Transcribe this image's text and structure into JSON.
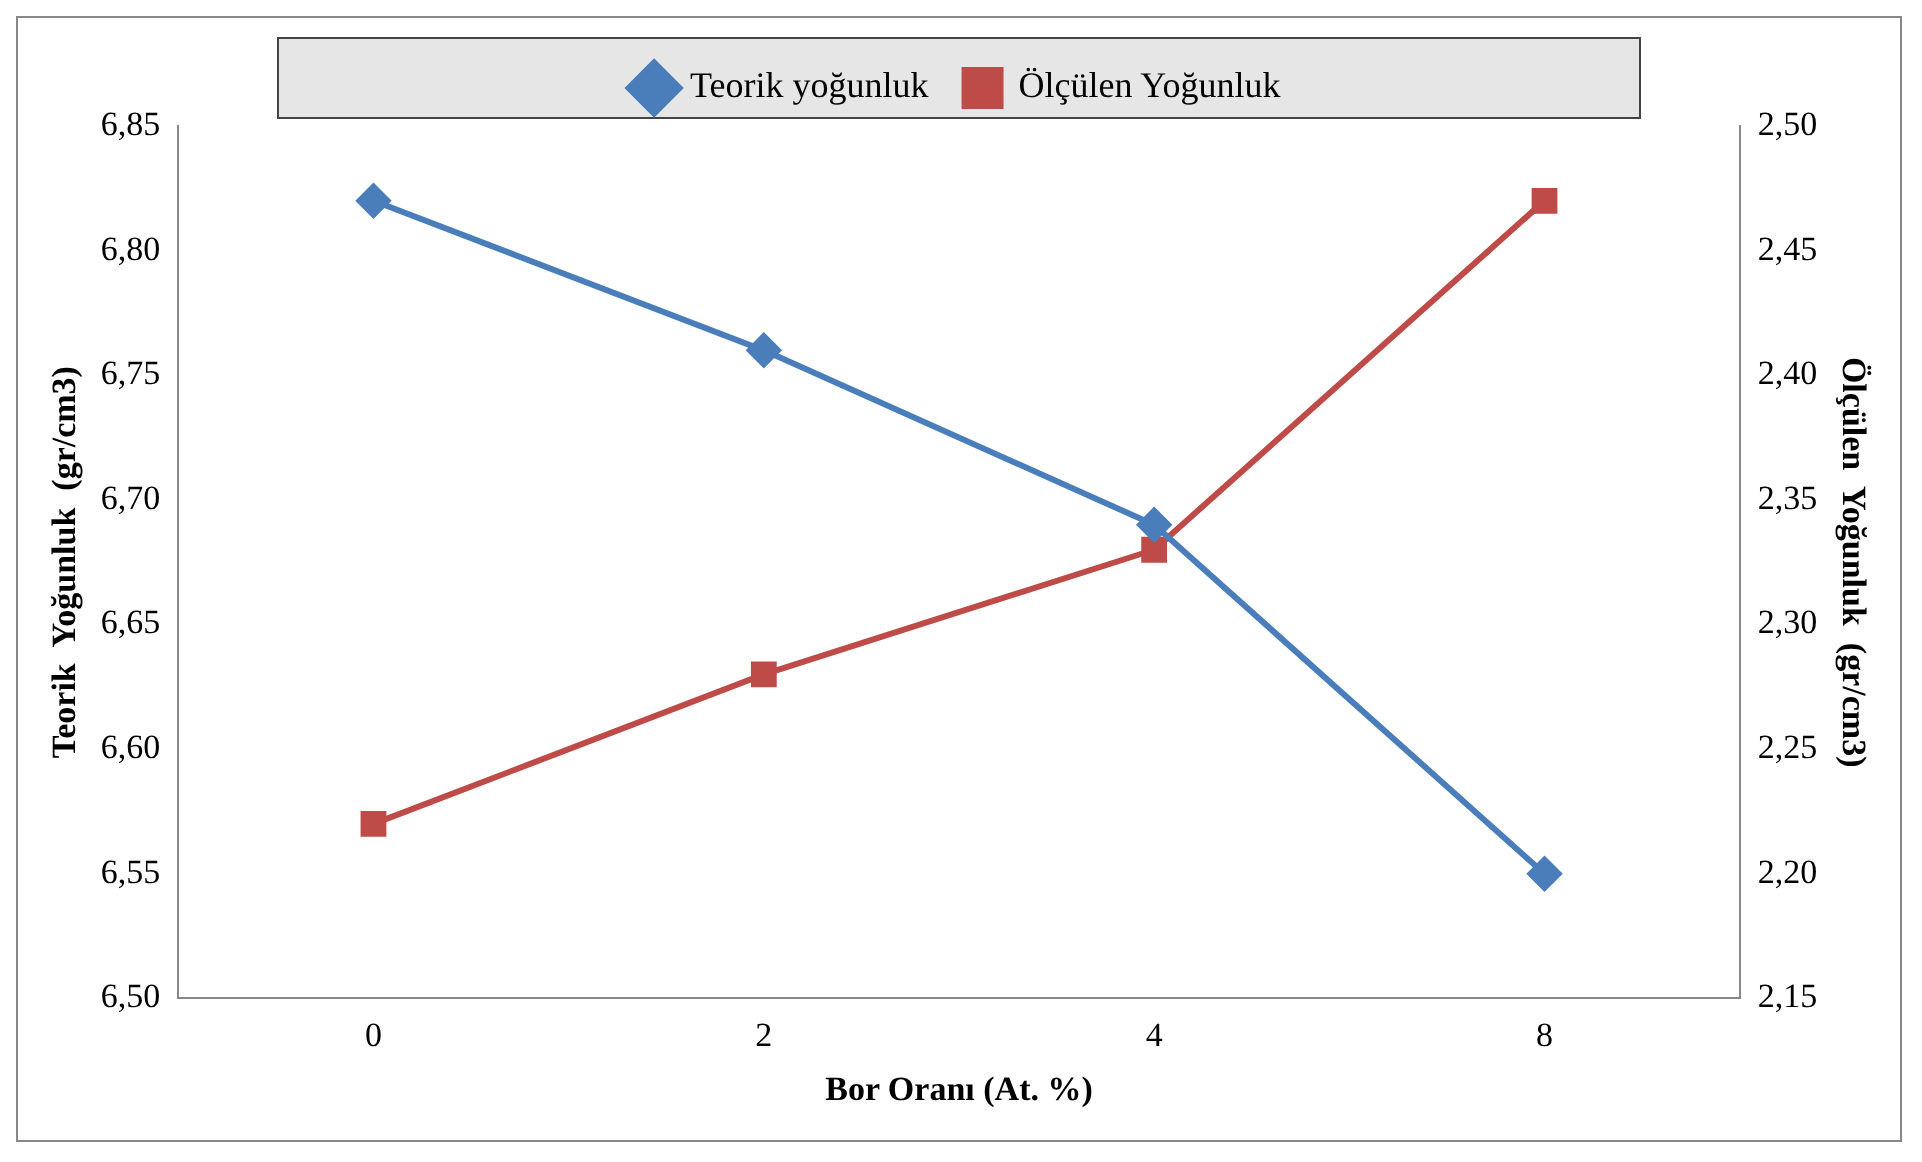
{
  "chart_data": {
    "type": "line",
    "xlabel": "Bor Oranı (At. %)",
    "ylabel": "Teorik  Yoğunluk  (gr/cm3)",
    "y2label": "Ölçülen  Yoğunluk  (gr/cm3)",
    "categories": [
      "0",
      "2",
      "4",
      "8"
    ],
    "series": [
      {
        "name": "Teorik yoğunluk",
        "color": "#4a7ebb",
        "marker": "diamond",
        "values": [
          6.82,
          6.76,
          6.69,
          6.55
        ]
      },
      {
        "name": "Ölçülen Yoğunluk",
        "color": "#be4b48",
        "marker": "square",
        "axis": "y2",
        "values": [
          2.22,
          2.28,
          2.33,
          2.47
        ]
      }
    ],
    "ylim": [
      6.5,
      6.85
    ],
    "yticks": [
      {
        "value": 6.5,
        "label": "6,50"
      },
      {
        "value": 6.55,
        "label": "6,55"
      },
      {
        "value": 6.6,
        "label": "6,60"
      },
      {
        "value": 6.65,
        "label": "6,65"
      },
      {
        "value": 6.7,
        "label": "6,70"
      },
      {
        "value": 6.75,
        "label": "6,75"
      },
      {
        "value": 6.8,
        "label": "6,80"
      },
      {
        "value": 6.85,
        "label": "6,85"
      }
    ],
    "y2lim": [
      2.15,
      2.5
    ],
    "y2ticks": [
      {
        "value": 2.15,
        "label": "2,15"
      },
      {
        "value": 2.2,
        "label": "2,20"
      },
      {
        "value": 2.25,
        "label": "2,25"
      },
      {
        "value": 2.3,
        "label": "2,30"
      },
      {
        "value": 2.35,
        "label": "2,35"
      },
      {
        "value": 2.4,
        "label": "2,40"
      },
      {
        "value": 2.45,
        "label": "2,45"
      },
      {
        "value": 2.5,
        "label": "2,50"
      }
    ],
    "grid": false,
    "legend": "top"
  }
}
